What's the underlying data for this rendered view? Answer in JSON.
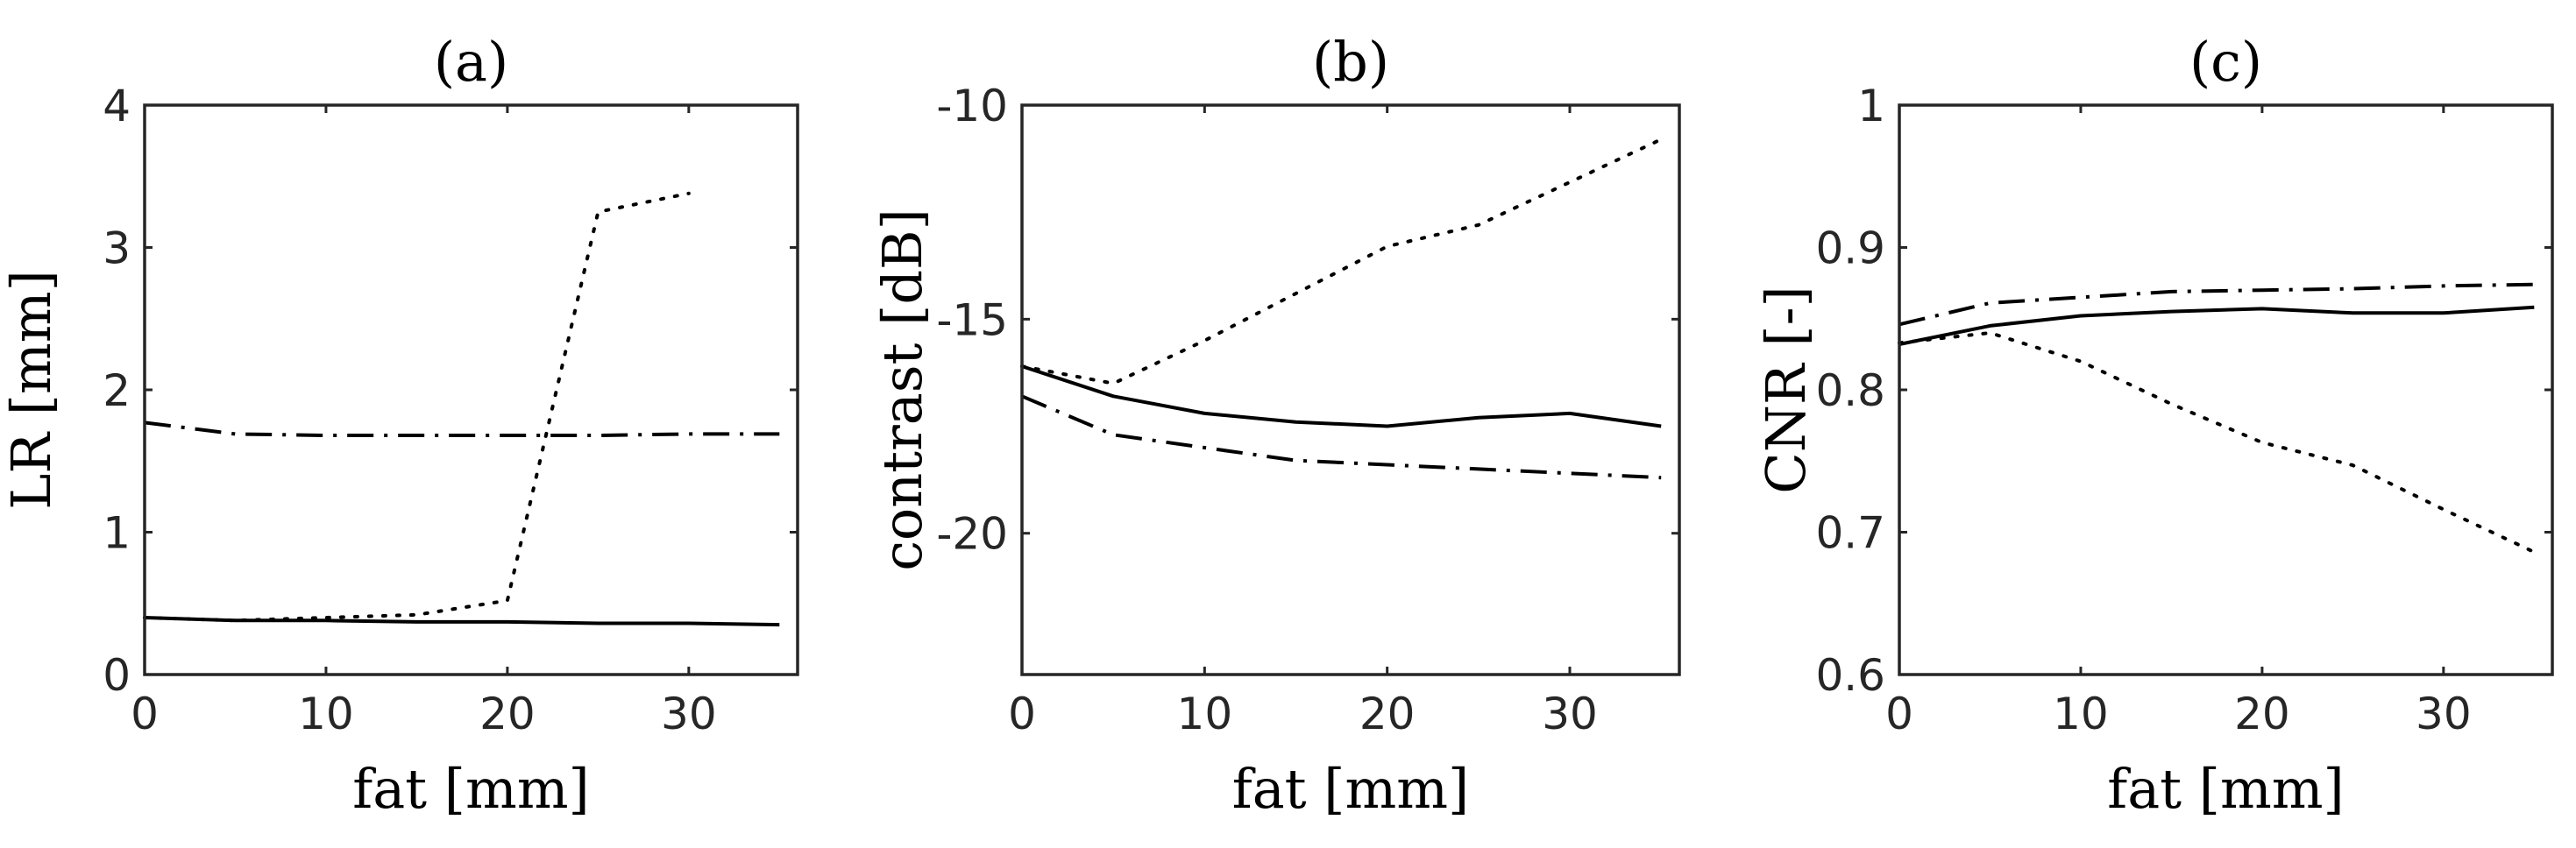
{
  "chart_data": [
    {
      "type": "line",
      "title": "(a)",
      "xlabel": "fat [mm]",
      "ylabel": "LR [mm]",
      "xlim": [
        0,
        36
      ],
      "ylim": [
        0,
        4
      ],
      "xticks": [
        0,
        10,
        20,
        30
      ],
      "yticks": [
        0,
        1,
        2,
        3,
        4
      ],
      "ytick_labels": [
        "0",
        "1",
        "2",
        "3",
        "4"
      ],
      "series": [
        {
          "name": "solid",
          "style": "solid",
          "x": [
            0,
            5,
            10,
            15,
            20,
            25,
            30,
            35
          ],
          "y": [
            0.4,
            0.38,
            0.38,
            0.37,
            0.37,
            0.36,
            0.36,
            0.35
          ]
        },
        {
          "name": "dash-dot",
          "style": "dashdot",
          "x": [
            0,
            5,
            10,
            15,
            20,
            25,
            30,
            35
          ],
          "y": [
            1.77,
            1.69,
            1.68,
            1.68,
            1.68,
            1.68,
            1.69,
            1.69
          ]
        },
        {
          "name": "dotted",
          "style": "dotted",
          "x": [
            0,
            5,
            10,
            15,
            20,
            25,
            30
          ],
          "y": [
            0.4,
            0.38,
            0.4,
            0.42,
            0.52,
            3.25,
            3.38
          ]
        }
      ]
    },
    {
      "type": "line",
      "title": "(b)",
      "xlabel": "fat [mm]",
      "ylabel": "contrast [dB]",
      "xlim": [
        0,
        36
      ],
      "ylim": [
        -23.3,
        -10
      ],
      "xticks": [
        0,
        10,
        20,
        30
      ],
      "yticks": [
        -20,
        -15,
        -10
      ],
      "ytick_labels": [
        "-20",
        "-15",
        "-10"
      ],
      "series": [
        {
          "name": "solid",
          "style": "solid",
          "x": [
            0,
            5,
            10,
            15,
            20,
            25,
            30,
            35
          ],
          "y": [
            -16.1,
            -16.8,
            -17.2,
            -17.4,
            -17.5,
            -17.3,
            -17.2,
            -17.5
          ]
        },
        {
          "name": "dash-dot",
          "style": "dashdot",
          "x": [
            0,
            5,
            10,
            15,
            20,
            25,
            30,
            35
          ],
          "y": [
            -16.8,
            -17.7,
            -18.0,
            -18.3,
            -18.4,
            -18.5,
            -18.6,
            -18.7
          ]
        },
        {
          "name": "dotted",
          "style": "dotted",
          "x": [
            0,
            5,
            10,
            15,
            20,
            25,
            30,
            35
          ],
          "y": [
            -16.1,
            -16.5,
            -15.5,
            -14.4,
            -13.3,
            -12.8,
            -11.8,
            -10.8
          ]
        }
      ]
    },
    {
      "type": "line",
      "title": "(c)",
      "xlabel": "fat [mm]",
      "ylabel": "CNR [-]",
      "xlim": [
        0,
        36
      ],
      "ylim": [
        0.6,
        1
      ],
      "xticks": [
        0,
        10,
        20,
        30
      ],
      "yticks": [
        0.6,
        0.7,
        0.8,
        0.9,
        1
      ],
      "ytick_labels": [
        "0.6",
        "0.7",
        "0.8",
        "0.9",
        "1"
      ],
      "series": [
        {
          "name": "solid",
          "style": "solid",
          "x": [
            0,
            5,
            10,
            15,
            20,
            25,
            30,
            35
          ],
          "y": [
            0.832,
            0.845,
            0.852,
            0.855,
            0.857,
            0.854,
            0.854,
            0.858
          ]
        },
        {
          "name": "dash-dot",
          "style": "dashdot",
          "x": [
            0,
            5,
            10,
            15,
            20,
            25,
            30,
            35
          ],
          "y": [
            0.846,
            0.861,
            0.865,
            0.869,
            0.87,
            0.871,
            0.873,
            0.874
          ]
        },
        {
          "name": "dotted",
          "style": "dotted",
          "x": [
            0,
            5,
            10,
            15,
            20,
            25,
            30,
            35
          ],
          "y": [
            0.833,
            0.84,
            0.82,
            0.79,
            0.763,
            0.747,
            0.716,
            0.686
          ]
        }
      ]
    }
  ]
}
